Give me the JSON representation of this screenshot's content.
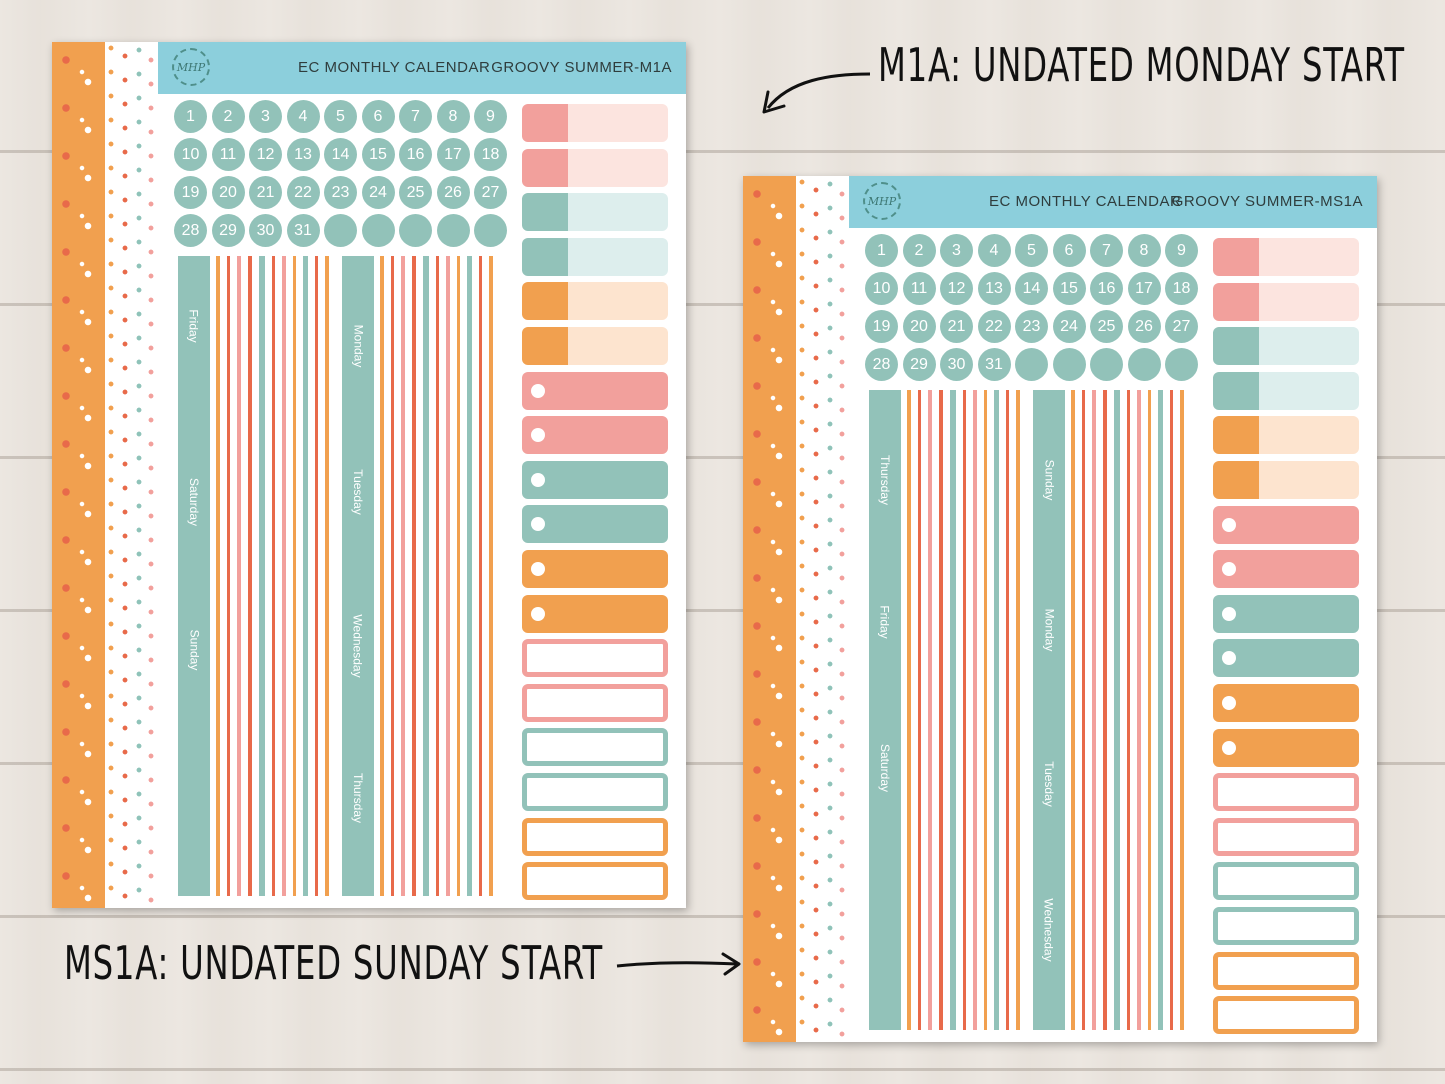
{
  "colors": {
    "teal": "#92c2b9",
    "teal_light": "#ddeeed",
    "pink": "#f2a09c",
    "pink_light": "#fce4df",
    "orange": "#f1a04f",
    "orange_light": "#fde4cf",
    "coral": "#e86a4a",
    "header_blue": "#8ccfdc"
  },
  "labels": {
    "m1a": "M1A: UNDATED MONDAY START",
    "ms1a": "MS1A: UNDATED SUNDAY START"
  },
  "sheets": [
    {
      "logo": "MHP",
      "title": "EC MONTHLY CALENDAR",
      "code": "GROOVY SUMMER-M1A",
      "dates": [
        "1",
        "2",
        "3",
        "4",
        "5",
        "6",
        "7",
        "8",
        "9",
        "10",
        "11",
        "12",
        "13",
        "14",
        "15",
        "16",
        "17",
        "18",
        "19",
        "20",
        "21",
        "22",
        "23",
        "24",
        "25",
        "26",
        "27",
        "28",
        "29",
        "30",
        "31",
        "",
        "",
        "",
        "",
        ""
      ],
      "col1_days": [
        "Friday",
        "Saturday",
        "Sunday"
      ],
      "col2_days": [
        "Monday",
        "Tuesday",
        "Wednesday",
        "Thursday"
      ]
    },
    {
      "logo": "MHP",
      "title": "EC MONTHLY CALENDAR",
      "code": "GROOVY SUMMER-MS1A",
      "dates": [
        "1",
        "2",
        "3",
        "4",
        "5",
        "6",
        "7",
        "8",
        "9",
        "10",
        "11",
        "12",
        "13",
        "14",
        "15",
        "16",
        "17",
        "18",
        "19",
        "20",
        "21",
        "22",
        "23",
        "24",
        "25",
        "26",
        "27",
        "28",
        "29",
        "30",
        "31",
        "",
        "",
        "",
        "",
        ""
      ],
      "col1_days": [
        "Thursday",
        "Friday",
        "Saturday"
      ],
      "col2_days": [
        "Sunday",
        "Monday",
        "Tuesday",
        "Wednesday"
      ]
    }
  ]
}
